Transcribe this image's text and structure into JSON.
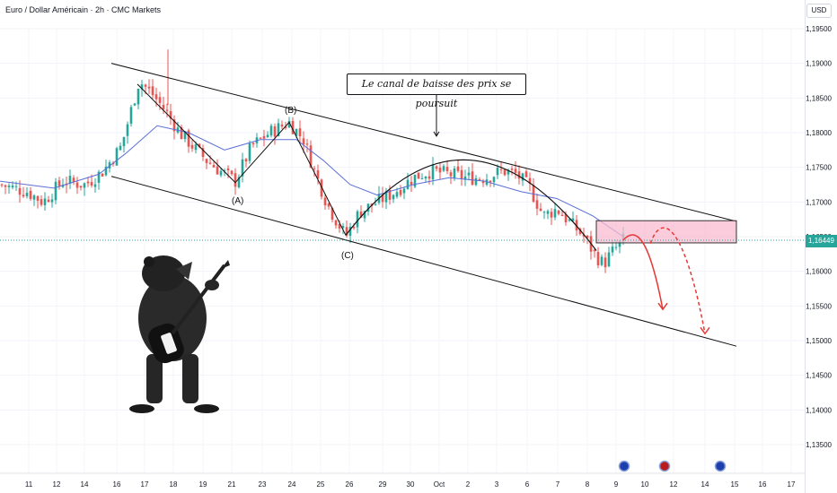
{
  "header": {
    "symbol_title": "Euro / Dollar Américain · 2h · CMC Markets",
    "currency_button": "USD"
  },
  "annotation": {
    "callout": "Le canal de baisse des prix se poursuit"
  },
  "wave_labels": [
    "(A)",
    "(B)",
    "(C)"
  ],
  "current_price": "1,16449",
  "colors": {
    "bull": "#26a69a",
    "bear": "#ef5350",
    "ma": "#5b6fd6",
    "zone": "#f8bbd0",
    "arrow": "#e53935"
  },
  "event_icons": [
    "eu-flag-icon",
    "us-flag-icon",
    "eu-flag-icon"
  ],
  "chart_data": {
    "type": "candlestick",
    "yaxis": {
      "ticks": [
        "1,19500",
        "1,19000",
        "1,18500",
        "1,18000",
        "1,17500",
        "1,17000",
        "1,16500",
        "1,16000",
        "1,15500",
        "1,15000",
        "1,14500",
        "1,14000",
        "1,13500"
      ],
      "range": [
        1.133,
        1.197
      ],
      "tick_values": [
        1.195,
        1.19,
        1.185,
        1.18,
        1.175,
        1.17,
        1.165,
        1.16,
        1.155,
        1.15,
        1.145,
        1.14,
        1.135
      ]
    },
    "xaxis": {
      "tick_labels": [
        "11",
        "12",
        "14",
        "16",
        "17",
        "18",
        "19",
        "21",
        "23",
        "24",
        "25",
        "26",
        "29",
        "30",
        "Oct",
        "2",
        "3",
        "6",
        "7",
        "8",
        "9",
        "10",
        "12",
        "14",
        "15",
        "16",
        "17"
      ]
    },
    "close_path": [
      [
        0,
        1.1725
      ],
      [
        30,
        1.1715
      ],
      [
        48,
        1.17
      ],
      [
        70,
        1.173
      ],
      [
        95,
        1.1725
      ],
      [
        115,
        1.1745
      ],
      [
        135,
        1.178
      ],
      [
        155,
        1.1875
      ],
      [
        170,
        1.1855
      ],
      [
        185,
        1.183
      ],
      [
        200,
        1.18
      ],
      [
        215,
        1.178
      ],
      [
        230,
        1.176
      ],
      [
        245,
        1.1745
      ],
      [
        262,
        1.173
      ],
      [
        280,
        1.178
      ],
      [
        300,
        1.18
      ],
      [
        322,
        1.1815
      ],
      [
        338,
        1.179
      ],
      [
        350,
        1.1745
      ],
      [
        365,
        1.1695
      ],
      [
        385,
        1.165
      ],
      [
        400,
        1.1685
      ],
      [
        420,
        1.17
      ],
      [
        440,
        1.1715
      ],
      [
        460,
        1.1735
      ],
      [
        480,
        1.1745
      ],
      [
        500,
        1.174
      ],
      [
        520,
        1.1735
      ],
      [
        540,
        1.1735
      ],
      [
        560,
        1.1745
      ],
      [
        575,
        1.174
      ],
      [
        590,
        1.172
      ],
      [
        605,
        1.168
      ],
      [
        620,
        1.169
      ],
      [
        635,
        1.167
      ],
      [
        650,
        1.165
      ],
      [
        662,
        1.1625
      ],
      [
        672,
        1.161
      ],
      [
        680,
        1.1625
      ],
      [
        694,
        1.1645
      ]
    ],
    "ma_path": [
      [
        0,
        1.173
      ],
      [
        60,
        1.172
      ],
      [
        110,
        1.174
      ],
      [
        140,
        1.177
      ],
      [
        175,
        1.181
      ],
      [
        210,
        1.18
      ],
      [
        250,
        1.1775
      ],
      [
        290,
        1.179
      ],
      [
        330,
        1.179
      ],
      [
        360,
        1.176
      ],
      [
        390,
        1.1725
      ],
      [
        420,
        1.171
      ],
      [
        460,
        1.1725
      ],
      [
        500,
        1.1735
      ],
      [
        540,
        1.173
      ],
      [
        580,
        1.1715
      ],
      [
        620,
        1.1705
      ],
      [
        660,
        1.168
      ],
      [
        694,
        1.165
      ]
    ],
    "channel": {
      "upper": [
        [
          124,
          1.19
        ],
        [
          820,
          1.1672
        ]
      ],
      "lower": [
        [
          124,
          1.1737
        ],
        [
          820,
          1.1492
        ]
      ]
    },
    "zone": {
      "x1": 664,
      "x2": 820,
      "y_top": 1.1673,
      "y_bottom": 1.1641
    },
    "forecast_paths": [
      {
        "style": "solid",
        "points": [
          [
            694,
            1.1645
          ],
          [
            710,
            1.1668
          ],
          [
            724,
            1.164
          ],
          [
            738,
            1.1545
          ]
        ]
      },
      {
        "style": "dashed",
        "points": [
          [
            724,
            1.164
          ],
          [
            740,
            1.1695
          ],
          [
            765,
            1.165
          ],
          [
            785,
            1.151
          ]
        ]
      }
    ]
  }
}
